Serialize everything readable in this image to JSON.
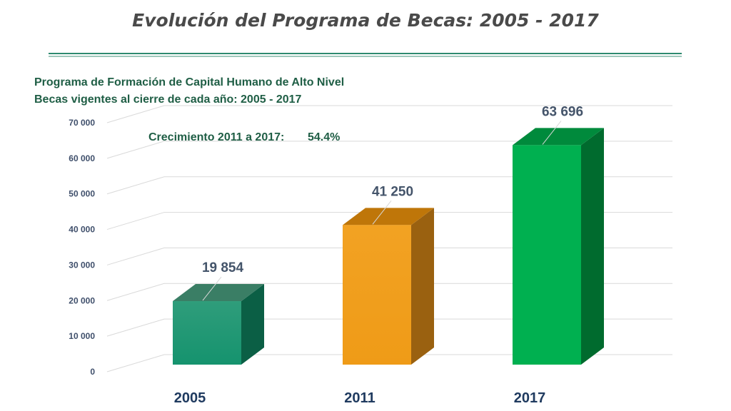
{
  "page": {
    "title": "Evolución del Programa de Becas: 2005 - 2017",
    "subtitle_line1": "Programa de Formación de Capital Humano de Alto Nivel",
    "subtitle_line2": "Becas vigentes al cierre de cada año: 2005 - 2017"
  },
  "chart_data": {
    "type": "bar",
    "style": "3d-column",
    "title": "",
    "xlabel": "",
    "ylabel": "",
    "categories": [
      "2005",
      "2011",
      "2017"
    ],
    "values": [
      19854,
      41250,
      63696
    ],
    "value_labels": [
      "19 854",
      "41 250",
      "63 696"
    ],
    "ylim": [
      0,
      70000
    ],
    "yticks": [
      0,
      10000,
      20000,
      30000,
      40000,
      50000,
      60000,
      70000
    ],
    "ytick_labels": [
      "0",
      "10 000",
      "20 000",
      "30 000",
      "40 000",
      "50 000",
      "60 000",
      "70 000"
    ],
    "grid": true,
    "legend": "none",
    "annotation": {
      "label": "Crecimiento 2011 a 2017:",
      "value": "54.4%"
    },
    "colors": {
      "bars": [
        {
          "front_top": "#2f9d7b",
          "front_bottom": "#15936e",
          "top": "#3a7e65",
          "side": "#0b5f45"
        },
        {
          "front_top": "#f2a223",
          "front_bottom": "#ef9b17",
          "top": "#bf7609",
          "side": "#9a6110"
        },
        {
          "front_top": "#00b050",
          "front_bottom": "#00b050",
          "top": "#008a3c",
          "side": "#006b2e"
        }
      ],
      "grid": "#d9d9d9",
      "axis_text": "#3f4f6b",
      "category_text": "#1f3a5f",
      "value_text": "#44546a",
      "annotation_text": "#1f5e45"
    }
  }
}
